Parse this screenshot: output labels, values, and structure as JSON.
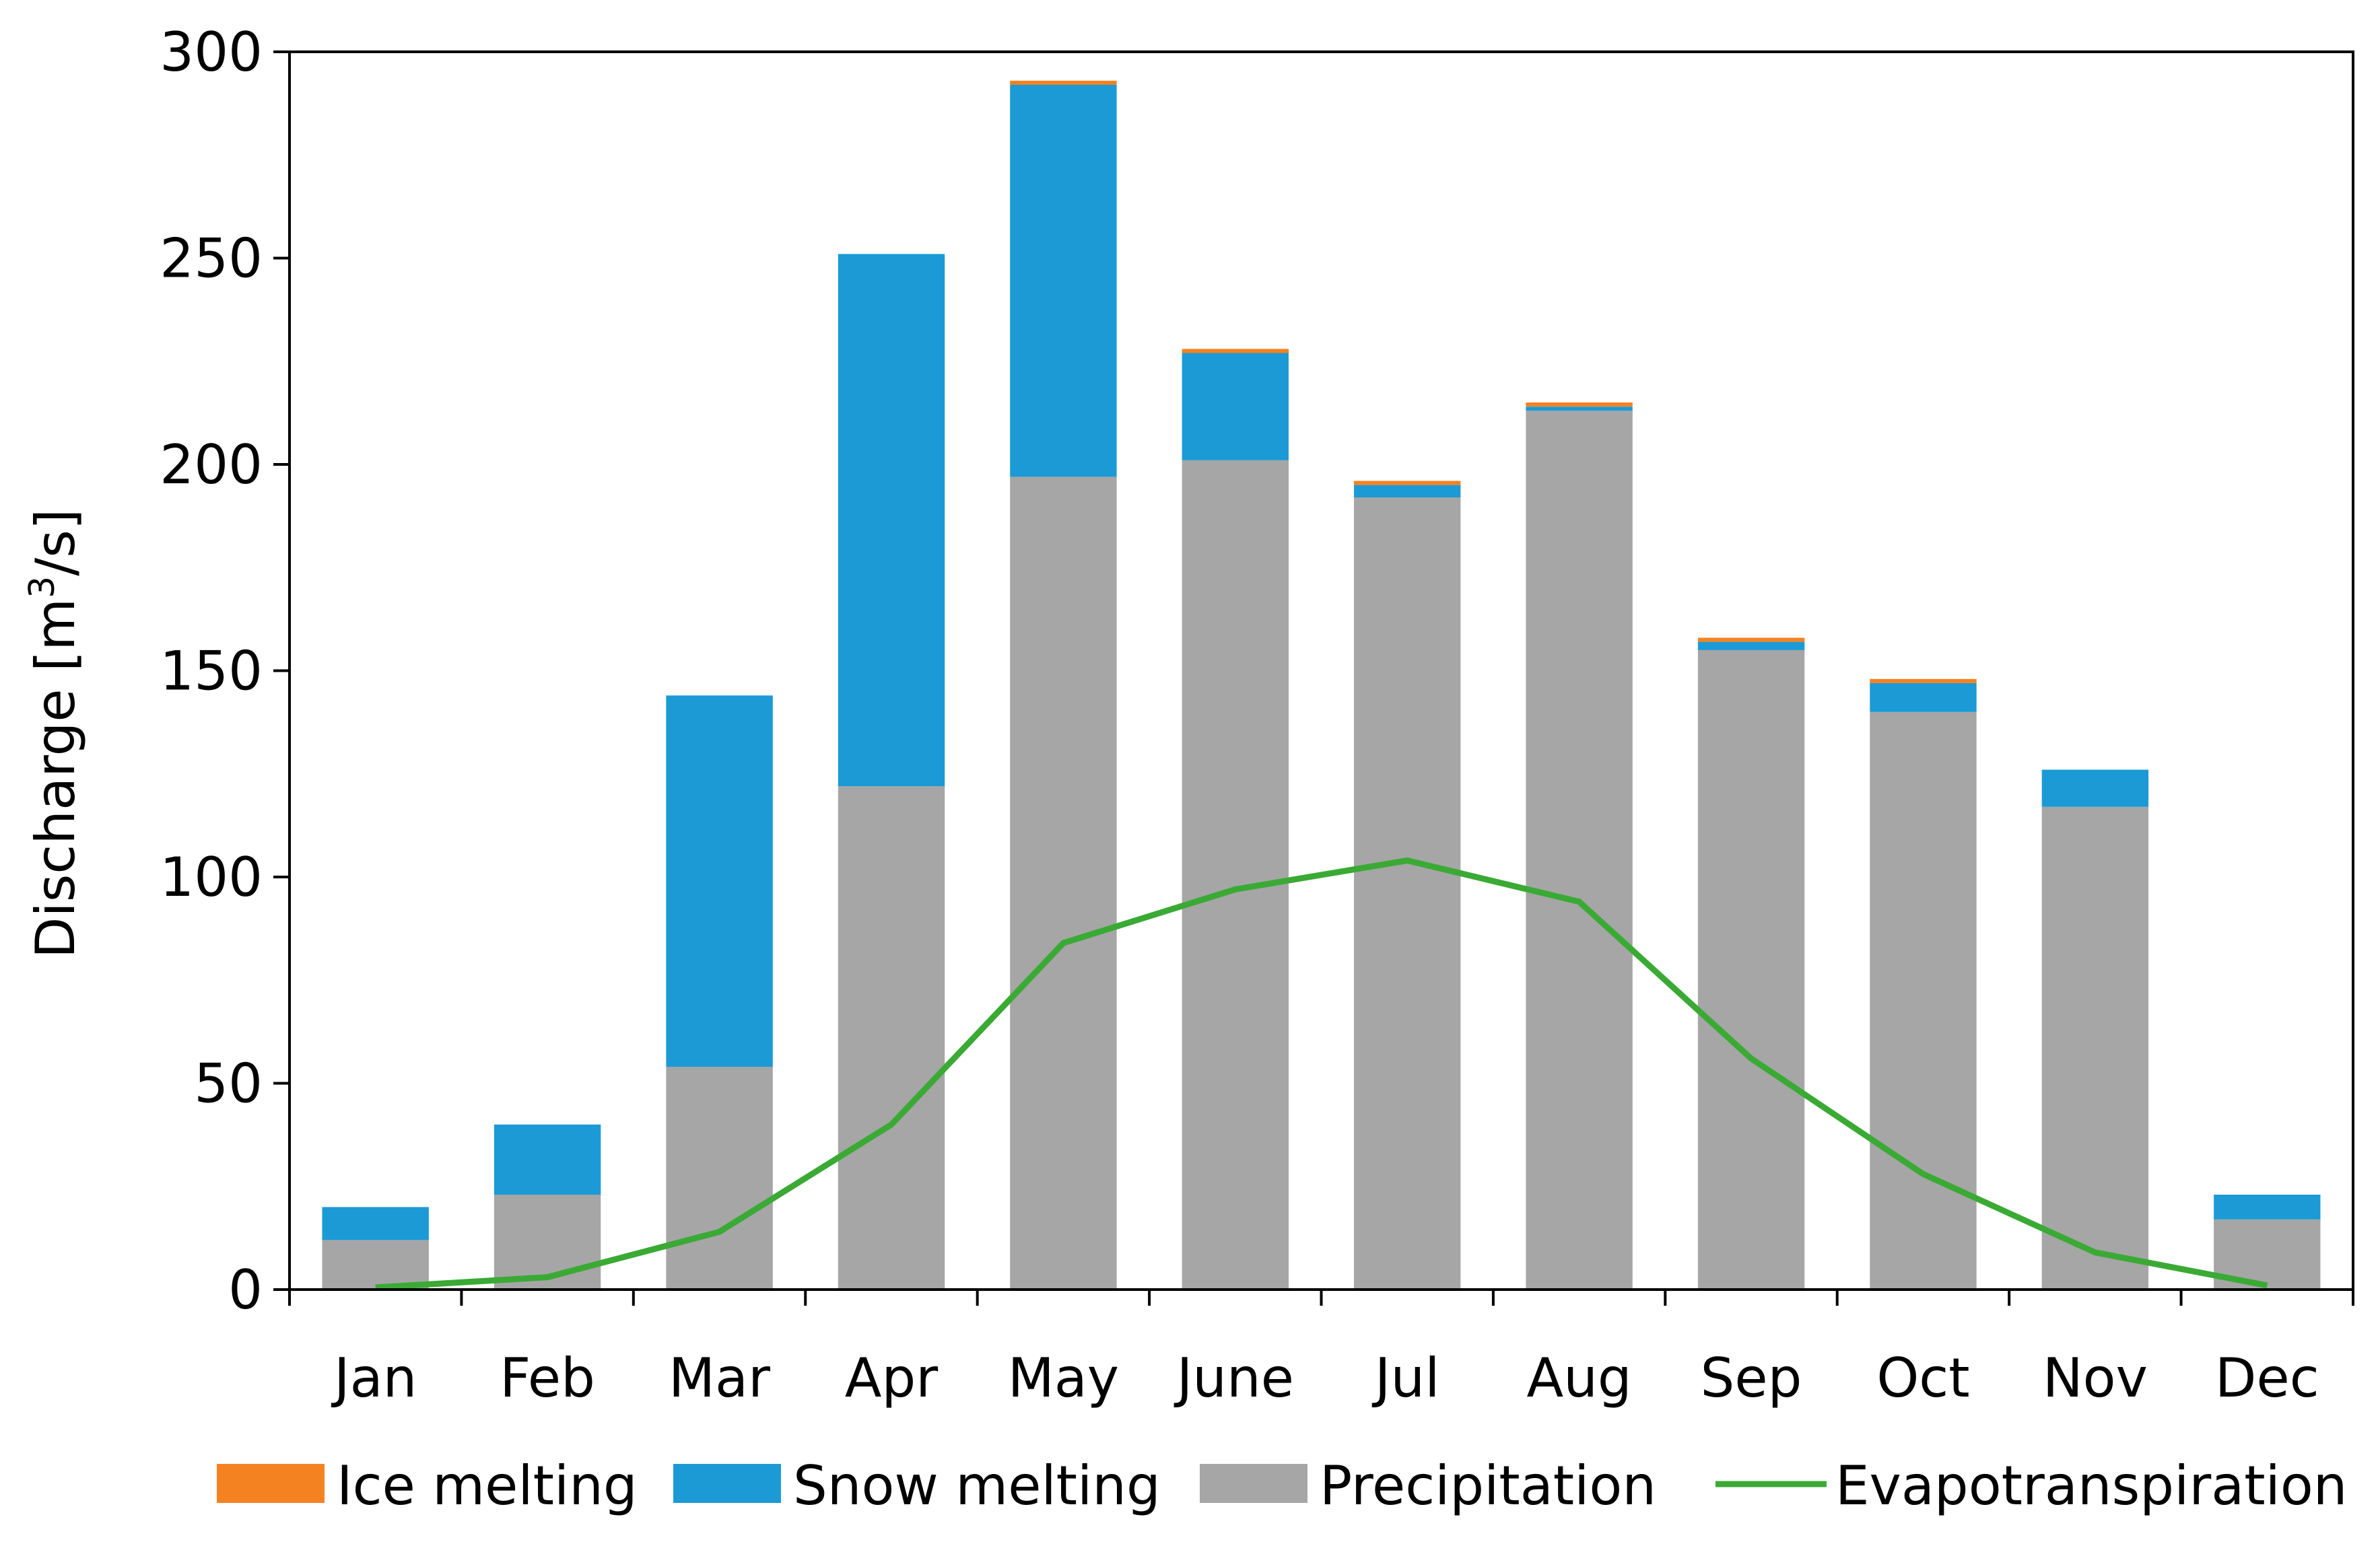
{
  "chart_data": {
    "type": "bar",
    "stacked": true,
    "title": "",
    "xlabel": "",
    "ylabel": "Discharge [m",
    "ylabel_superscript": "3",
    "ylabel_suffix": "/s]",
    "ylim": [
      0,
      300
    ],
    "yticks": [
      0,
      50,
      100,
      150,
      200,
      250,
      300
    ],
    "grid": false,
    "legend_position": "bottom",
    "categories": [
      "Jan",
      "Feb",
      "Mar",
      "Apr",
      "May",
      "June",
      "Jul",
      "Aug",
      "Sep",
      "Oct",
      "Nov",
      "Dec"
    ],
    "series": [
      {
        "name": "Precipitation",
        "kind": "bar",
        "color": "#A6A6A6",
        "values": [
          12,
          23,
          54,
          122,
          197,
          201,
          192,
          213,
          155,
          140,
          117,
          17
        ]
      },
      {
        "name": "Snow melting",
        "kind": "bar",
        "color": "#1B9AD6",
        "values": [
          8,
          17,
          90,
          129,
          95,
          26,
          3,
          1,
          2,
          7,
          9,
          6
        ]
      },
      {
        "name": "Ice melting",
        "kind": "bar",
        "color": "#F58220",
        "values": [
          0,
          0,
          0,
          0,
          1,
          1,
          1,
          1,
          1,
          1,
          0,
          0
        ]
      },
      {
        "name": "Evapotranspiration",
        "kind": "line",
        "color": "#3AAA35",
        "values": [
          0.5,
          3,
          14,
          40,
          84,
          97,
          104,
          94,
          56,
          28,
          9,
          1
        ]
      }
    ],
    "legend": [
      "Ice melting",
      "Snow melting",
      "Precipitation",
      "Evapotranspiration"
    ]
  }
}
